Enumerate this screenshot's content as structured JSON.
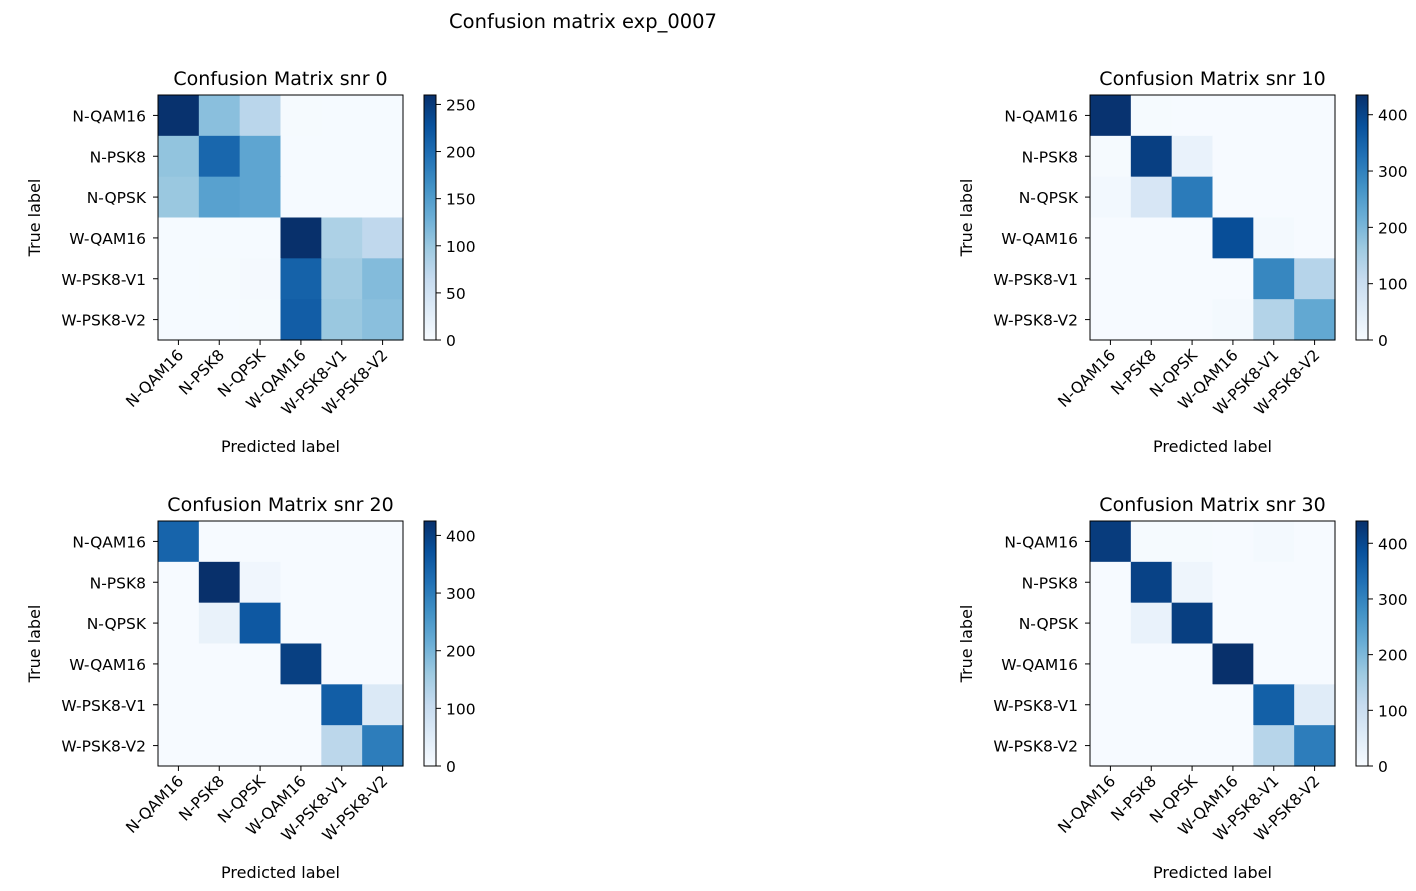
{
  "figure": {
    "suptitle": "Confusion matrix exp_0007"
  },
  "chart_data": [
    {
      "type": "heatmap",
      "title": "Confusion Matrix snr 0",
      "xlabel": "Predicted label",
      "ylabel": "True label",
      "labels": [
        "N-QAM16",
        "N-PSK8",
        "N-QPSK",
        "W-QAM16",
        "W-PSK8-V1",
        "W-PSK8-V2"
      ],
      "colormap": "Blues",
      "vmin": 0,
      "vmax": 260,
      "colorbar_ticks": [
        0,
        50,
        100,
        150,
        200,
        250
      ],
      "matrix": [
        [
          258,
          110,
          75,
          3,
          2,
          2
        ],
        [
          105,
          205,
          140,
          2,
          2,
          2
        ],
        [
          100,
          145,
          140,
          2,
          2,
          2
        ],
        [
          2,
          2,
          2,
          260,
          85,
          70
        ],
        [
          2,
          3,
          4,
          210,
          95,
          115
        ],
        [
          2,
          2,
          3,
          215,
          100,
          110
        ]
      ]
    },
    {
      "type": "heatmap",
      "title": "Confusion Matrix snr 10",
      "xlabel": "Predicted label",
      "ylabel": "True label",
      "labels": [
        "N-QAM16",
        "N-PSK8",
        "N-QPSK",
        "W-QAM16",
        "W-PSK8-V1",
        "W-PSK8-V2"
      ],
      "colormap": "Blues",
      "vmin": 0,
      "vmax": 435,
      "colorbar_ticks": [
        0,
        100,
        200,
        300,
        400
      ],
      "matrix": [
        [
          430,
          4,
          3,
          3,
          3,
          3
        ],
        [
          5,
          410,
          30,
          3,
          3,
          3
        ],
        [
          10,
          70,
          310,
          3,
          3,
          3
        ],
        [
          3,
          3,
          3,
          385,
          8,
          3
        ],
        [
          3,
          3,
          3,
          3,
          290,
          130
        ],
        [
          3,
          3,
          3,
          8,
          135,
          230
        ]
      ]
    },
    {
      "type": "heatmap",
      "title": "Confusion Matrix snr 20",
      "xlabel": "Predicted label",
      "ylabel": "True label",
      "labels": [
        "N-QAM16",
        "N-PSK8",
        "N-QPSK",
        "W-QAM16",
        "W-PSK8-V1",
        "W-PSK8-V2"
      ],
      "colormap": "Blues",
      "vmin": 0,
      "vmax": 425,
      "colorbar_ticks": [
        0,
        100,
        200,
        300,
        400
      ],
      "matrix": [
        [
          340,
          3,
          3,
          3,
          3,
          3
        ],
        [
          3,
          425,
          15,
          3,
          3,
          3
        ],
        [
          3,
          30,
          360,
          3,
          3,
          3
        ],
        [
          3,
          3,
          3,
          400,
          3,
          3
        ],
        [
          3,
          3,
          3,
          3,
          350,
          60
        ],
        [
          3,
          3,
          3,
          3,
          120,
          300
        ]
      ]
    },
    {
      "type": "heatmap",
      "title": "Confusion Matrix snr 30",
      "xlabel": "Predicted label",
      "ylabel": "True label",
      "labels": [
        "N-QAM16",
        "N-PSK8",
        "N-QPSK",
        "W-QAM16",
        "W-PSK8-V1",
        "W-PSK8-V2"
      ],
      "colormap": "Blues",
      "vmin": 0,
      "vmax": 440,
      "colorbar_ticks": [
        0,
        100,
        200,
        300,
        400
      ],
      "matrix": [
        [
          420,
          5,
          5,
          3,
          8,
          3
        ],
        [
          3,
          410,
          20,
          3,
          3,
          3
        ],
        [
          3,
          30,
          415,
          3,
          3,
          3
        ],
        [
          3,
          3,
          3,
          440,
          3,
          3
        ],
        [
          3,
          3,
          3,
          3,
          360,
          50
        ],
        [
          3,
          3,
          3,
          3,
          130,
          310
        ]
      ]
    }
  ]
}
